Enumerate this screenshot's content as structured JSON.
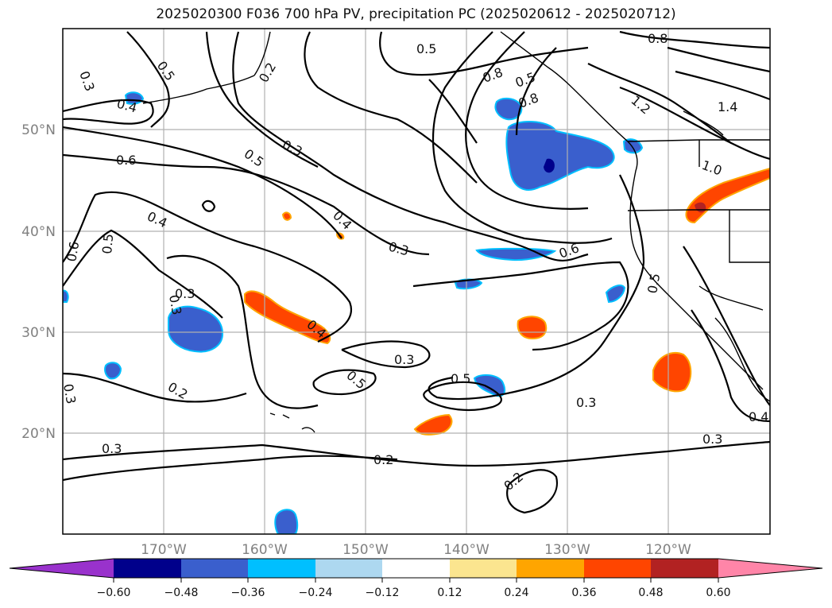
{
  "title": "2025020300 F036 700 hPa PV, precipitation PC (2025020612 - 2025020712)",
  "lat_labels": [
    "50°N",
    "40°N",
    "30°N",
    "20°N"
  ],
  "lon_labels": [
    "170°W",
    "160°W",
    "150°W",
    "140°W",
    "130°W",
    "120°W"
  ],
  "colorbar": {
    "ticks": [
      "−0.60",
      "−0.48",
      "−0.36",
      "−0.24",
      "−0.12",
      "0.12",
      "0.24",
      "0.36",
      "0.48",
      "0.60"
    ],
    "colors": [
      "#9932cc",
      "#00008b",
      "#3a5fcd",
      "#00bfff",
      "#add8f0",
      "#ffffff",
      "#fbe58f",
      "#ffa500",
      "#ff4500",
      "#b22222",
      "#ff85a8"
    ]
  },
  "contour_labels": [
    "0.3",
    "0.5",
    "0.2",
    "0.4",
    "0.5",
    "0.8",
    "0.5",
    "0.8",
    "1.2",
    "1.4",
    "0.8",
    "1.0",
    "0.6",
    "0.5",
    "0.3",
    "0.4",
    "0.3",
    "0.4",
    "0.5",
    "0.6",
    "0.6",
    "0.5",
    "0.3",
    "0.4",
    "0.3",
    "0.5",
    "0.5",
    "0.2",
    "0.3",
    "0.3",
    "0.2",
    "0.3",
    "0.3",
    "0.4",
    "0.3",
    "0.2"
  ],
  "colors": {
    "contour": "#000000",
    "grid": "#b0b0b0",
    "coast": "#000000"
  }
}
